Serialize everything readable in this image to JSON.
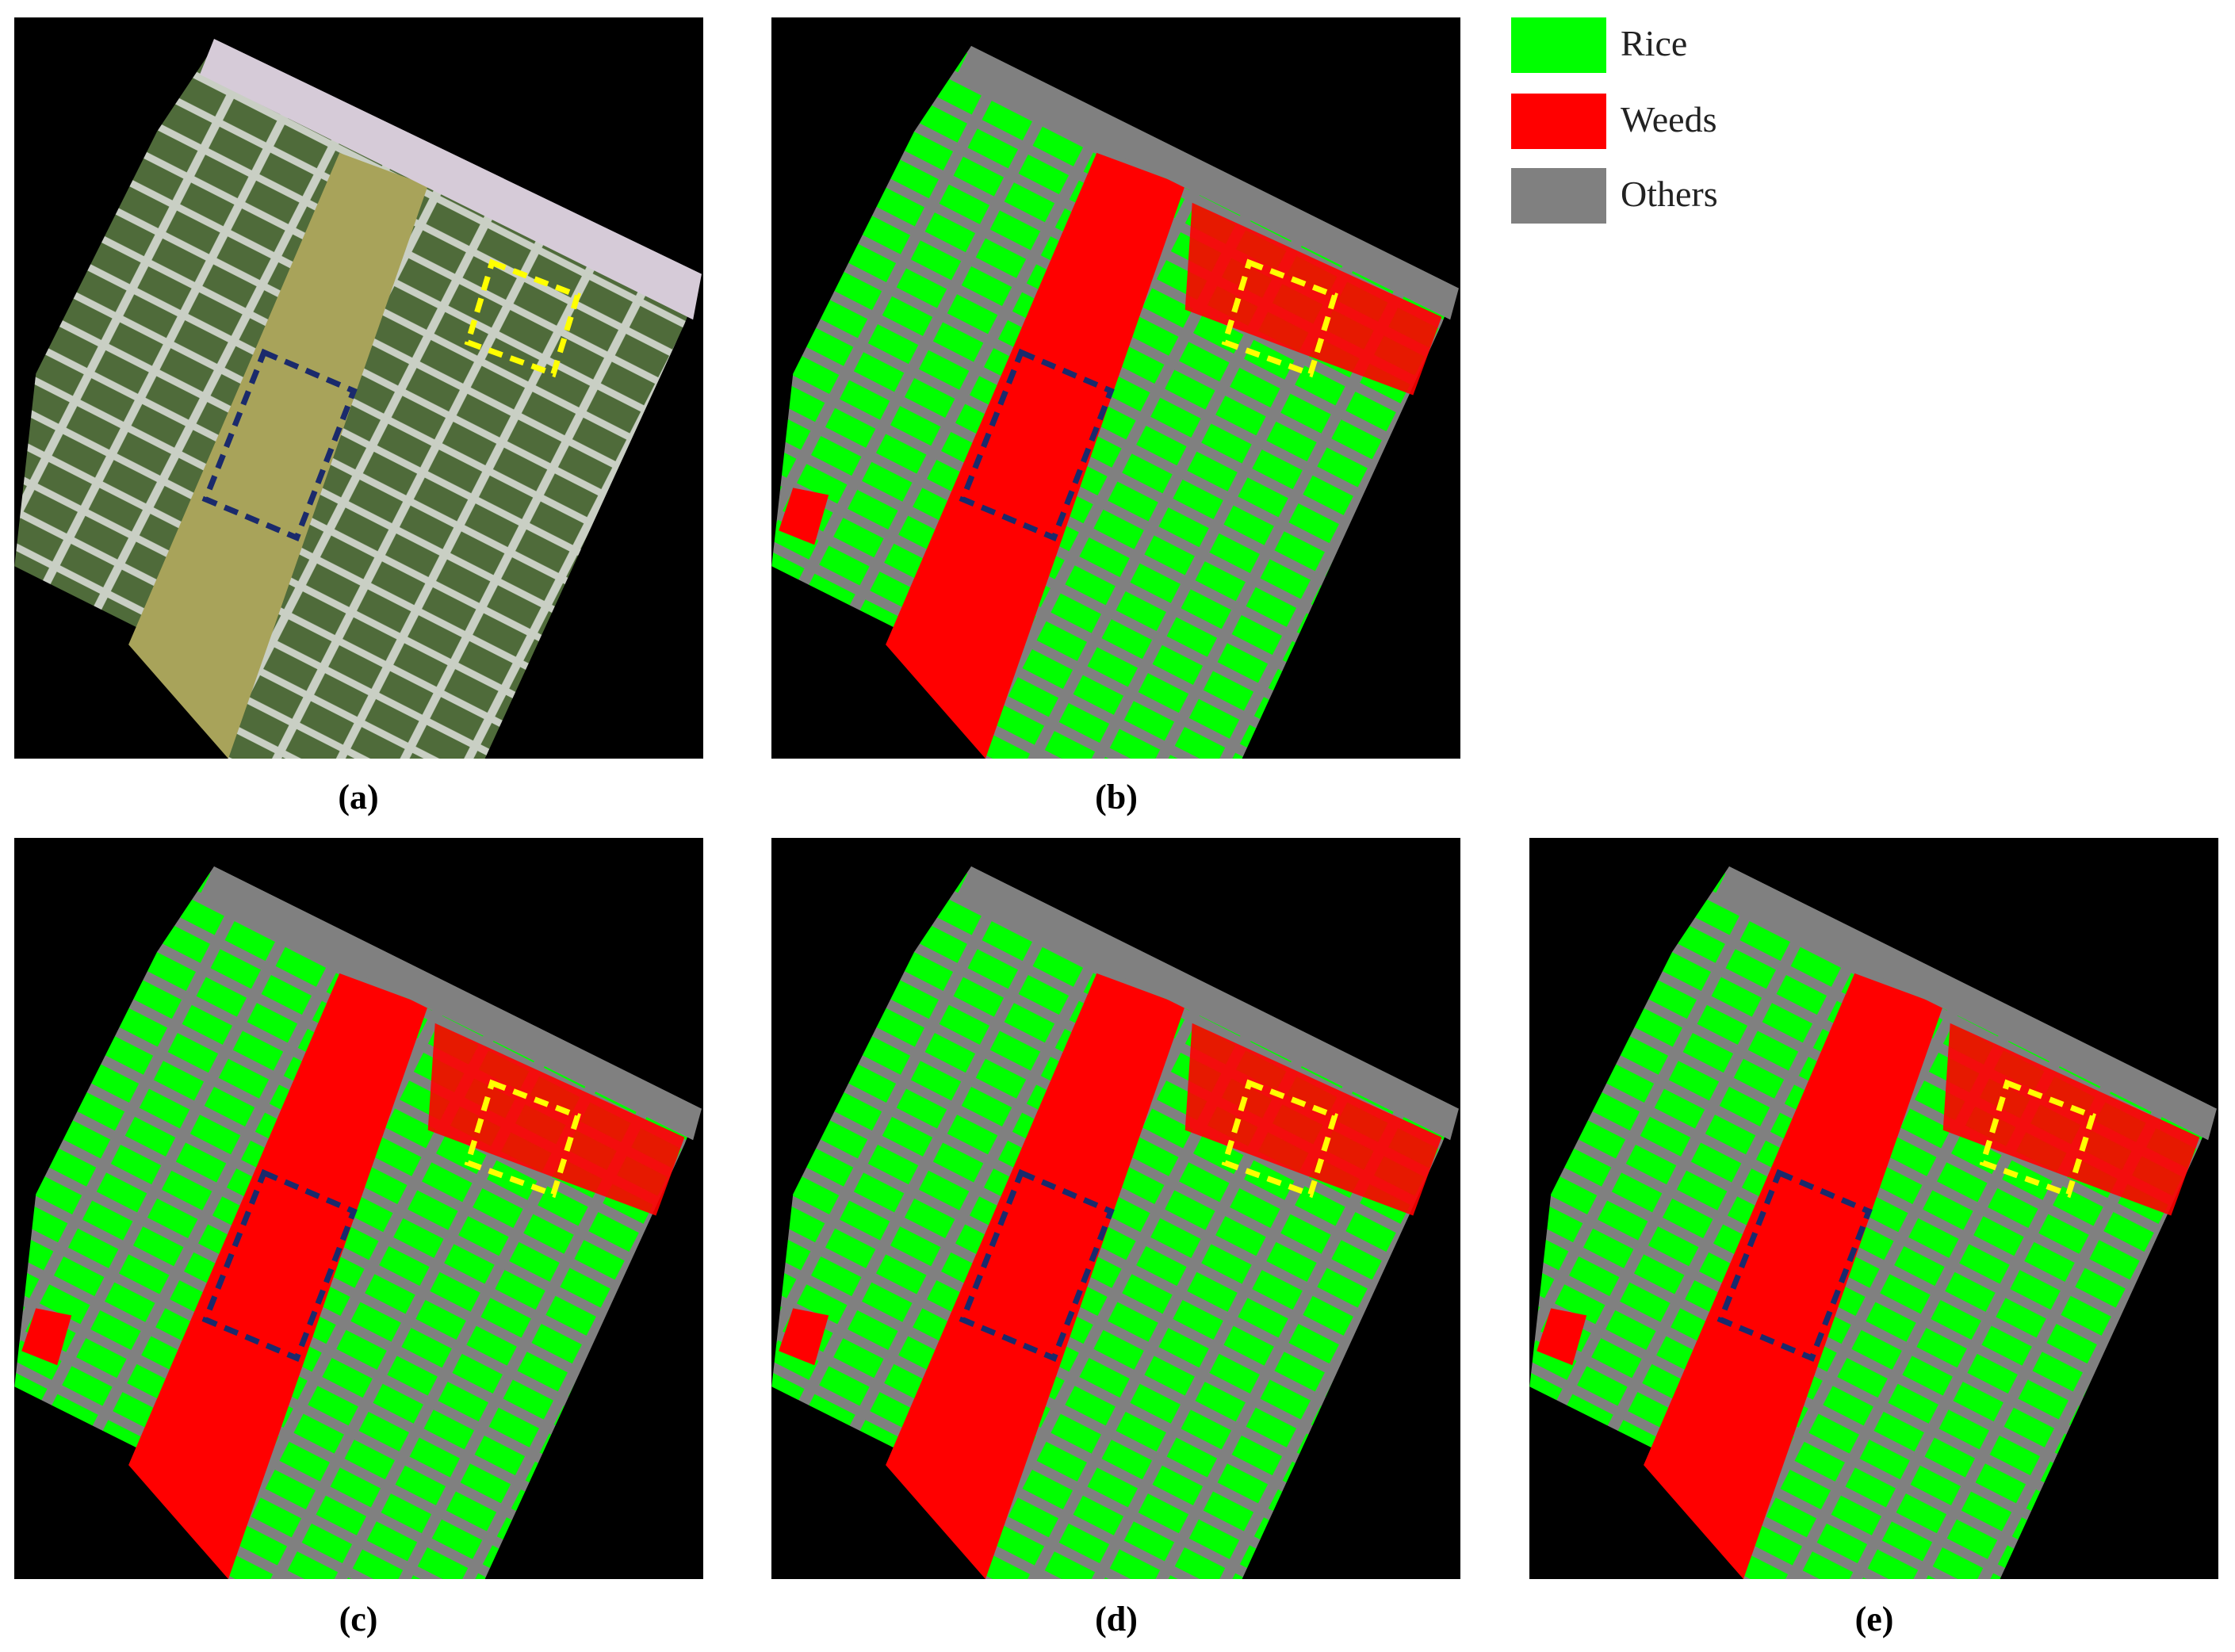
{
  "panels": [
    {
      "label": "(a)"
    },
    {
      "label": "(b)"
    },
    {
      "label": "(c)"
    },
    {
      "label": "(d)"
    },
    {
      "label": "(e)"
    }
  ],
  "legend": [
    {
      "label": "Rice"
    },
    {
      "label": "Weeds"
    },
    {
      "label": "Others"
    }
  ]
}
